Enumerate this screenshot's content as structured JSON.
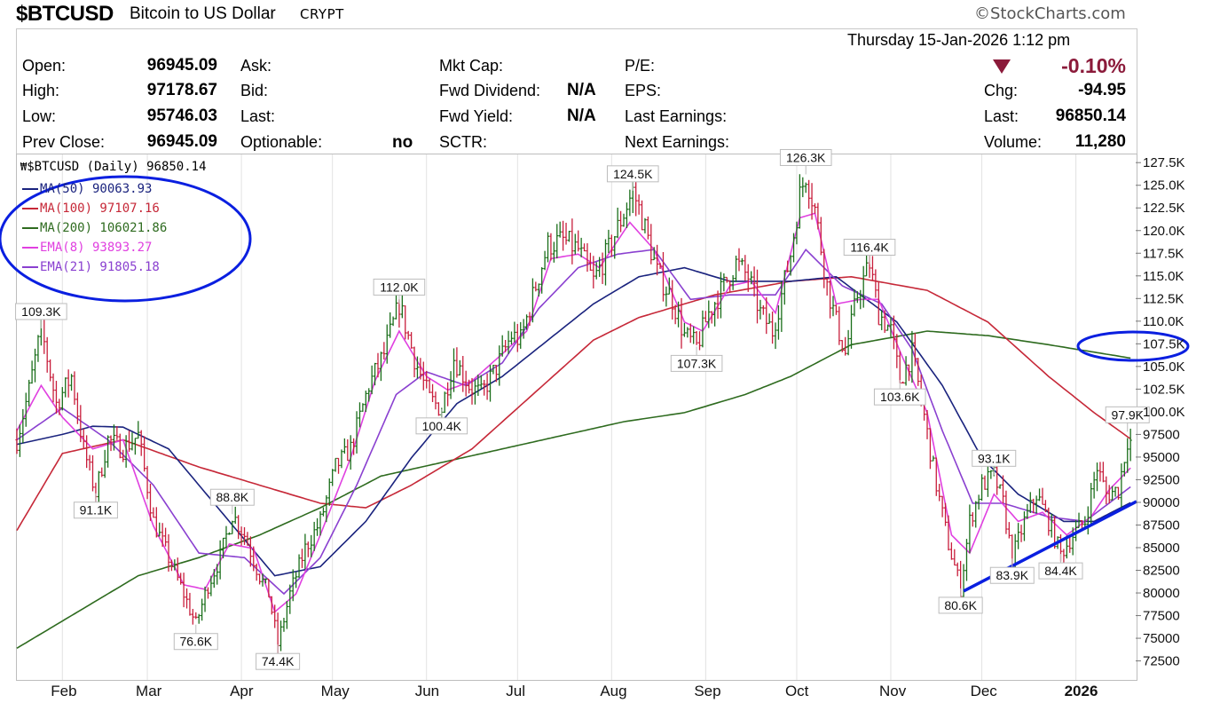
{
  "header": {
    "symbol": "$BTCUSD",
    "name": "Bitcoin to US Dollar",
    "exchange": "CRYPT",
    "brand": "©StockCharts.com",
    "datetime": "Thursday  15-Jan-2026  1:12 pm"
  },
  "quote": {
    "open_label": "Open:",
    "open": "96945.09",
    "high_label": "High:",
    "high": "97178.67",
    "low_label": "Low:",
    "low": "95746.03",
    "prev_close_label": "Prev Close:",
    "prev_close": "96945.09",
    "ask_label": "Ask:",
    "bid_label": "Bid:",
    "last_label_mid": "Last:",
    "optionable_label": "Optionable:",
    "optionable": "no",
    "mkt_cap_label": "Mkt Cap:",
    "fwd_div_label": "Fwd Dividend:",
    "fwd_div": "N/A",
    "fwd_yield_label": "Fwd Yield:",
    "fwd_yield": "N/A",
    "sctr_label": "SCTR:",
    "pe_label": "P/E:",
    "eps_label": "EPS:",
    "last_earn_label": "Last Earnings:",
    "next_earn_label": "Next Earnings:",
    "pct_change": "-0.10%",
    "chg_label": "Chg:",
    "chg": "-94.95",
    "last_label": "Last:",
    "last": "96850.14",
    "volume_label": "Volume:",
    "volume": "11,280"
  },
  "colors": {
    "down": "#8b1a3a",
    "up_bar": "#1a6e1a",
    "down_bar": "#c81e3c",
    "ma50": "#1a237e",
    "ma100": "#c62838",
    "ma200": "#2e6b1f",
    "ema8": "#e040e0",
    "ema21": "#8a40d0",
    "annot": "#0a1fe0"
  },
  "chart_data": {
    "type": "candlestick",
    "title": "$BTCUSD (Daily) 96850.14",
    "legend": [
      {
        "name": "MA(50)",
        "value": "90063.93",
        "color": "#1a237e"
      },
      {
        "name": "MA(100)",
        "value": "97107.16",
        "color": "#c62838"
      },
      {
        "name": "MA(200)",
        "value": "106021.86",
        "color": "#2e6b1f"
      },
      {
        "name": "EMA(8)",
        "value": "93893.27",
        "color": "#e040e0"
      },
      {
        "name": "EMA(21)",
        "value": "91805.18",
        "color": "#8a40d0"
      }
    ],
    "legend_position": "top-left",
    "y_ticks": [
      "127.5K",
      "125.0K",
      "122.5K",
      "120.0K",
      "117.5K",
      "115.0K",
      "112.5K",
      "110.0K",
      "107.5K",
      "105.0K",
      "102.5K",
      "100.0K",
      "97500",
      "95000",
      "92500",
      "90000",
      "87500",
      "85000",
      "82500",
      "80000",
      "77500",
      "75000",
      "72500"
    ],
    "y_tick_values": [
      127500,
      125000,
      122500,
      120000,
      117500,
      115000,
      112500,
      110000,
      107500,
      105000,
      102500,
      100000,
      97500,
      95000,
      92500,
      90000,
      87500,
      85000,
      82500,
      80000,
      77500,
      75000,
      72500
    ],
    "x_ticks": [
      "Feb",
      "Mar",
      "Apr",
      "May",
      "Jun",
      "Jul",
      "Aug",
      "Sep",
      "Oct",
      "Nov",
      "Dec",
      "2026"
    ],
    "x_tick_days": [
      15,
      43,
      74,
      104,
      135,
      165,
      196,
      227,
      257,
      288,
      318,
      349
    ],
    "price_keys": [
      [
        0,
        97000
      ],
      [
        4,
        102500
      ],
      [
        8,
        109300
      ],
      [
        13,
        101000
      ],
      [
        18,
        104000
      ],
      [
        22,
        96000
      ],
      [
        26,
        91100
      ],
      [
        30,
        97000
      ],
      [
        35,
        96000
      ],
      [
        40,
        97500
      ],
      [
        45,
        88000
      ],
      [
        50,
        84000
      ],
      [
        55,
        80000
      ],
      [
        59,
        76600
      ],
      [
        63,
        81000
      ],
      [
        67,
        84000
      ],
      [
        71,
        88800
      ],
      [
        75,
        86500
      ],
      [
        80,
        82000
      ],
      [
        83,
        80000
      ],
      [
        86,
        74400
      ],
      [
        90,
        80000
      ],
      [
        95,
        85000
      ],
      [
        100,
        88000
      ],
      [
        105,
        94000
      ],
      [
        110,
        96000
      ],
      [
        116,
        103000
      ],
      [
        121,
        106500
      ],
      [
        126,
        112000
      ],
      [
        131,
        106000
      ],
      [
        136,
        101500
      ],
      [
        140,
        100400
      ],
      [
        144,
        106000
      ],
      [
        149,
        103000
      ],
      [
        153,
        102000
      ],
      [
        158,
        105000
      ],
      [
        163,
        108500
      ],
      [
        166,
        108000
      ],
      [
        171,
        114000
      ],
      [
        175,
        118500
      ],
      [
        180,
        119000
      ],
      [
        185,
        118000
      ],
      [
        190,
        114500
      ],
      [
        195,
        118000
      ],
      [
        200,
        122000
      ],
      [
        203,
        124500
      ],
      [
        206,
        121500
      ],
      [
        211,
        115500
      ],
      [
        216,
        112500
      ],
      [
        220,
        108500
      ],
      [
        224,
        107300
      ],
      [
        228,
        111000
      ],
      [
        233,
        114000
      ],
      [
        237,
        116500
      ],
      [
        241,
        115000
      ],
      [
        245,
        111000
      ],
      [
        249,
        109000
      ],
      [
        252,
        113000
      ],
      [
        255,
        117500
      ],
      [
        258,
        124000
      ],
      [
        260,
        126300
      ],
      [
        263,
        122500
      ],
      [
        267,
        114000
      ],
      [
        270,
        110000
      ],
      [
        273,
        106500
      ],
      [
        277,
        113000
      ],
      [
        281,
        116400
      ],
      [
        284,
        111000
      ],
      [
        288,
        109000
      ],
      [
        291,
        103600
      ],
      [
        295,
        106500
      ],
      [
        298,
        101500
      ],
      [
        303,
        92000
      ],
      [
        307,
        85500
      ],
      [
        311,
        80600
      ],
      [
        314,
        88000
      ],
      [
        318,
        92000
      ],
      [
        322,
        93100
      ],
      [
        325,
        90000
      ],
      [
        328,
        83900
      ],
      [
        332,
        88000
      ],
      [
        336,
        91000
      ],
      [
        340,
        88000
      ],
      [
        344,
        84400
      ],
      [
        348,
        86500
      ],
      [
        352,
        88000
      ],
      [
        356,
        94000
      ],
      [
        359,
        91000
      ],
      [
        363,
        91500
      ],
      [
        366,
        97000
      ],
      [
        367,
        96850
      ]
    ],
    "ma50_keys": [
      [
        0,
        96500
      ],
      [
        15,
        97600
      ],
      [
        25,
        98500
      ],
      [
        35,
        98400
      ],
      [
        50,
        96000
      ],
      [
        65,
        90000
      ],
      [
        85,
        82000
      ],
      [
        100,
        83000
      ],
      [
        115,
        88000
      ],
      [
        130,
        95000
      ],
      [
        145,
        101000
      ],
      [
        160,
        104000
      ],
      [
        175,
        108000
      ],
      [
        190,
        112000
      ],
      [
        205,
        115000
      ],
      [
        220,
        116000
      ],
      [
        235,
        114500
      ],
      [
        255,
        114500
      ],
      [
        270,
        115000
      ],
      [
        290,
        110000
      ],
      [
        305,
        103000
      ],
      [
        318,
        95000
      ],
      [
        330,
        91000
      ],
      [
        345,
        88000
      ],
      [
        355,
        88000
      ],
      [
        367,
        90064
      ]
    ],
    "ma100_keys": [
      [
        0,
        87000
      ],
      [
        15,
        95500
      ],
      [
        35,
        97000
      ],
      [
        60,
        94000
      ],
      [
        80,
        92000
      ],
      [
        100,
        90000
      ],
      [
        115,
        89500
      ],
      [
        130,
        92000
      ],
      [
        150,
        96000
      ],
      [
        170,
        102000
      ],
      [
        190,
        108000
      ],
      [
        205,
        110500
      ],
      [
        230,
        113000
      ],
      [
        255,
        114500
      ],
      [
        275,
        115000
      ],
      [
        300,
        113500
      ],
      [
        320,
        110000
      ],
      [
        340,
        104000
      ],
      [
        355,
        100000
      ],
      [
        367,
        97107
      ]
    ],
    "ma200_keys": [
      [
        0,
        74000
      ],
      [
        20,
        78000
      ],
      [
        40,
        82000
      ],
      [
        60,
        84000
      ],
      [
        80,
        86500
      ],
      [
        100,
        89500
      ],
      [
        120,
        93000
      ],
      [
        140,
        94500
      ],
      [
        160,
        96000
      ],
      [
        180,
        97500
      ],
      [
        200,
        99000
      ],
      [
        220,
        100000
      ],
      [
        240,
        102000
      ],
      [
        255,
        104000
      ],
      [
        275,
        107500
      ],
      [
        300,
        109000
      ],
      [
        320,
        108500
      ],
      [
        340,
        107500
      ],
      [
        367,
        106022
      ]
    ],
    "ema8_keys": [
      [
        0,
        98000
      ],
      [
        8,
        103000
      ],
      [
        15,
        99500
      ],
      [
        25,
        96000
      ],
      [
        35,
        97000
      ],
      [
        45,
        87500
      ],
      [
        55,
        81000
      ],
      [
        62,
        80500
      ],
      [
        70,
        85500
      ],
      [
        78,
        85000
      ],
      [
        85,
        78000
      ],
      [
        92,
        80000
      ],
      [
        100,
        86500
      ],
      [
        110,
        95000
      ],
      [
        118,
        103500
      ],
      [
        126,
        109000
      ],
      [
        135,
        104000
      ],
      [
        142,
        102500
      ],
      [
        150,
        103500
      ],
      [
        160,
        106500
      ],
      [
        168,
        109000
      ],
      [
        176,
        117000
      ],
      [
        185,
        117500
      ],
      [
        192,
        116000
      ],
      [
        202,
        121000
      ],
      [
        210,
        118000
      ],
      [
        220,
        110000
      ],
      [
        226,
        109000
      ],
      [
        235,
        114000
      ],
      [
        242,
        114500
      ],
      [
        250,
        111000
      ],
      [
        258,
        121500
      ],
      [
        263,
        122000
      ],
      [
        270,
        112000
      ],
      [
        278,
        112500
      ],
      [
        284,
        112500
      ],
      [
        292,
        106000
      ],
      [
        300,
        100000
      ],
      [
        308,
        86500
      ],
      [
        314,
        84500
      ],
      [
        322,
        91000
      ],
      [
        330,
        88000
      ],
      [
        338,
        89000
      ],
      [
        346,
        86500
      ],
      [
        354,
        88500
      ],
      [
        360,
        91500
      ],
      [
        367,
        93893
      ]
    ],
    "ema21_keys": [
      [
        0,
        97000
      ],
      [
        15,
        100500
      ],
      [
        30,
        97000
      ],
      [
        45,
        92000
      ],
      [
        60,
        84500
      ],
      [
        75,
        84000
      ],
      [
        88,
        80000
      ],
      [
        100,
        84000
      ],
      [
        112,
        92000
      ],
      [
        125,
        102000
      ],
      [
        135,
        104500
      ],
      [
        148,
        103000
      ],
      [
        160,
        105500
      ],
      [
        172,
        111500
      ],
      [
        185,
        116000
      ],
      [
        198,
        117500
      ],
      [
        210,
        118000
      ],
      [
        222,
        112500
      ],
      [
        235,
        113000
      ],
      [
        250,
        113000
      ],
      [
        260,
        118000
      ],
      [
        272,
        114000
      ],
      [
        285,
        112000
      ],
      [
        295,
        107000
      ],
      [
        305,
        98000
      ],
      [
        315,
        90000
      ],
      [
        325,
        90000
      ],
      [
        340,
        88500
      ],
      [
        352,
        88000
      ],
      [
        367,
        91805
      ]
    ],
    "annotations": [
      {
        "label": "109.3K",
        "day": 8,
        "value": 109300,
        "pos": "above"
      },
      {
        "label": "91.1K",
        "day": 26,
        "value": 91100,
        "pos": "below"
      },
      {
        "label": "88.8K",
        "day": 71,
        "value": 88800,
        "pos": "above"
      },
      {
        "label": "76.6K",
        "day": 59,
        "value": 76600,
        "pos": "below"
      },
      {
        "label": "74.4K",
        "day": 86,
        "value": 74400,
        "pos": "below"
      },
      {
        "label": "112.0K",
        "day": 126,
        "value": 112000,
        "pos": "above"
      },
      {
        "label": "100.4K",
        "day": 140,
        "value": 100400,
        "pos": "below"
      },
      {
        "label": "124.5K",
        "day": 203,
        "value": 124500,
        "pos": "above"
      },
      {
        "label": "107.3K",
        "day": 224,
        "value": 107300,
        "pos": "below"
      },
      {
        "label": "126.3K",
        "day": 260,
        "value": 126300,
        "pos": "above"
      },
      {
        "label": "116.4K",
        "day": 281,
        "value": 116400,
        "pos": "above"
      },
      {
        "label": "103.6K",
        "day": 291,
        "value": 103600,
        "pos": "below"
      },
      {
        "label": "93.1K",
        "day": 322,
        "value": 93100,
        "pos": "above"
      },
      {
        "label": "80.6K",
        "day": 311,
        "value": 80600,
        "pos": "below"
      },
      {
        "label": "83.9K",
        "day": 328,
        "value": 83900,
        "pos": "below"
      },
      {
        "label": "84.4K",
        "day": 344,
        "value": 84400,
        "pos": "below"
      },
      {
        "label": "97.9K",
        "day": 366,
        "value": 97900,
        "pos": "above"
      }
    ],
    "ylim": [
      70500,
      128500
    ],
    "xlim": [
      0,
      369
    ]
  }
}
